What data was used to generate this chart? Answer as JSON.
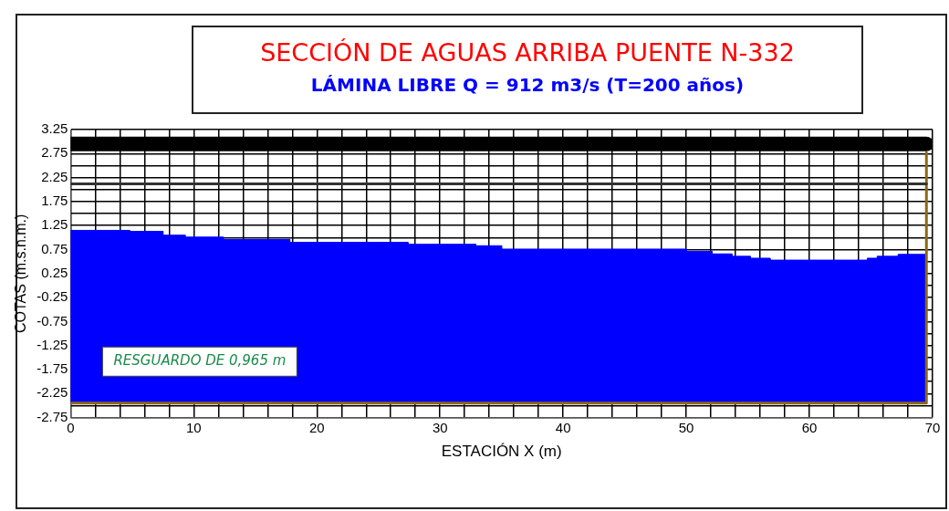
{
  "chart_data": {
    "type": "line",
    "title": "SECCIÓN DE AGUAS ARRIBA PUENTE N-332",
    "subtitle": "LÁMINA LIBRE Q = 912 m3/s (T=200 años)",
    "xlabel": "ESTACIÓN X (m)",
    "ylabel": "COTAS (m.s.n.m.)",
    "annotations": [
      "RESGUARDO DE 0,965 m"
    ],
    "series": [
      {
        "type": "area",
        "color": "#0000ff",
        "x": [
          0,
          0,
          4.8,
          4.8,
          7.5,
          7.5,
          9.3,
          9.3,
          12.4,
          12.4,
          17.8,
          17.8,
          27.4,
          27.4,
          32.9,
          32.9,
          35,
          35,
          50,
          50,
          52.1,
          52.1,
          53.7,
          53.7,
          55.2,
          55.2,
          56.8,
          56.8,
          64.7,
          64.7,
          65.5,
          65.5,
          67.2,
          67.2,
          69.5,
          69.5
        ],
        "values": [
          -2.45,
          1.15,
          1.15,
          1.13,
          1.13,
          1.05,
          1.05,
          1.01,
          1.01,
          0.96,
          0.96,
          0.9,
          0.9,
          0.86,
          0.86,
          0.83,
          0.83,
          0.76,
          0.76,
          0.71,
          0.71,
          0.66,
          0.66,
          0.61,
          0.61,
          0.57,
          0.57,
          0.53,
          0.53,
          0.57,
          0.57,
          0.61,
          0.61,
          0.65,
          0.65,
          -2.45
        ]
      },
      {
        "type": "line",
        "color": "#000000",
        "x": [
          0,
          69.5
        ],
        "values": [
          2.95,
          2.95
        ]
      },
      {
        "type": "line",
        "color": "#333333",
        "x": [
          0,
          69.5
        ],
        "values": [
          2.12,
          2.12
        ]
      },
      {
        "type": "line",
        "color": "#8b6914",
        "x": [
          0,
          69.5,
          69.5
        ],
        "values": [
          -2.45,
          -2.45,
          2.77
        ]
      }
    ],
    "xlim": [
      0,
      70
    ],
    "xticks": [
      0,
      {
        "value": 2,
        "label": null
      },
      {
        "value": 4,
        "label": null
      },
      {
        "value": 6,
        "label": null
      },
      {
        "value": 8,
        "label": null
      },
      10,
      {
        "value": 12,
        "label": null
      },
      {
        "value": 14,
        "label": null
      },
      {
        "value": 16,
        "label": null
      },
      {
        "value": 18,
        "label": null
      },
      20,
      {
        "value": 22,
        "label": null
      },
      {
        "value": 24,
        "label": null
      },
      {
        "value": 26,
        "label": null
      },
      {
        "value": 28,
        "label": null
      },
      30,
      {
        "value": 32,
        "label": null
      },
      {
        "value": 34,
        "label": null
      },
      {
        "value": 36,
        "label": null
      },
      {
        "value": 38,
        "label": null
      },
      40,
      {
        "value": 42,
        "label": null
      },
      {
        "value": 44,
        "label": null
      },
      {
        "value": 46,
        "label": null
      },
      {
        "value": 48,
        "label": null
      },
      50,
      {
        "value": 52,
        "label": null
      },
      {
        "value": 54,
        "label": null
      },
      {
        "value": 56,
        "label": null
      },
      {
        "value": 58,
        "label": null
      },
      60,
      {
        "value": 62,
        "label": null
      },
      {
        "value": 64,
        "label": null
      },
      {
        "value": 66,
        "label": null
      },
      {
        "value": 68,
        "label": null
      },
      70
    ],
    "ylim": [
      -2.75,
      3.25
    ],
    "yticks": [
      -2.75,
      {
        "value": -2.5,
        "label": null
      },
      -2.25,
      {
        "value": -2,
        "label": null
      },
      -1.75,
      {
        "value": -1.5,
        "label": null
      },
      -1.25,
      {
        "value": -1,
        "label": null
      },
      -0.75,
      {
        "value": -0.5,
        "label": null
      },
      -0.25,
      {
        "value": 0,
        "label": null
      },
      0.25,
      {
        "value": 0.5,
        "label": null
      },
      0.75,
      {
        "value": 1,
        "label": null
      },
      1.25,
      {
        "value": 1.5,
        "label": null
      },
      1.75,
      {
        "value": 2,
        "label": null
      },
      2.25,
      {
        "value": 2.5,
        "label": null
      },
      2.75,
      3.25
    ],
    "grid": true,
    "legend": false,
    "marker": "none"
  }
}
